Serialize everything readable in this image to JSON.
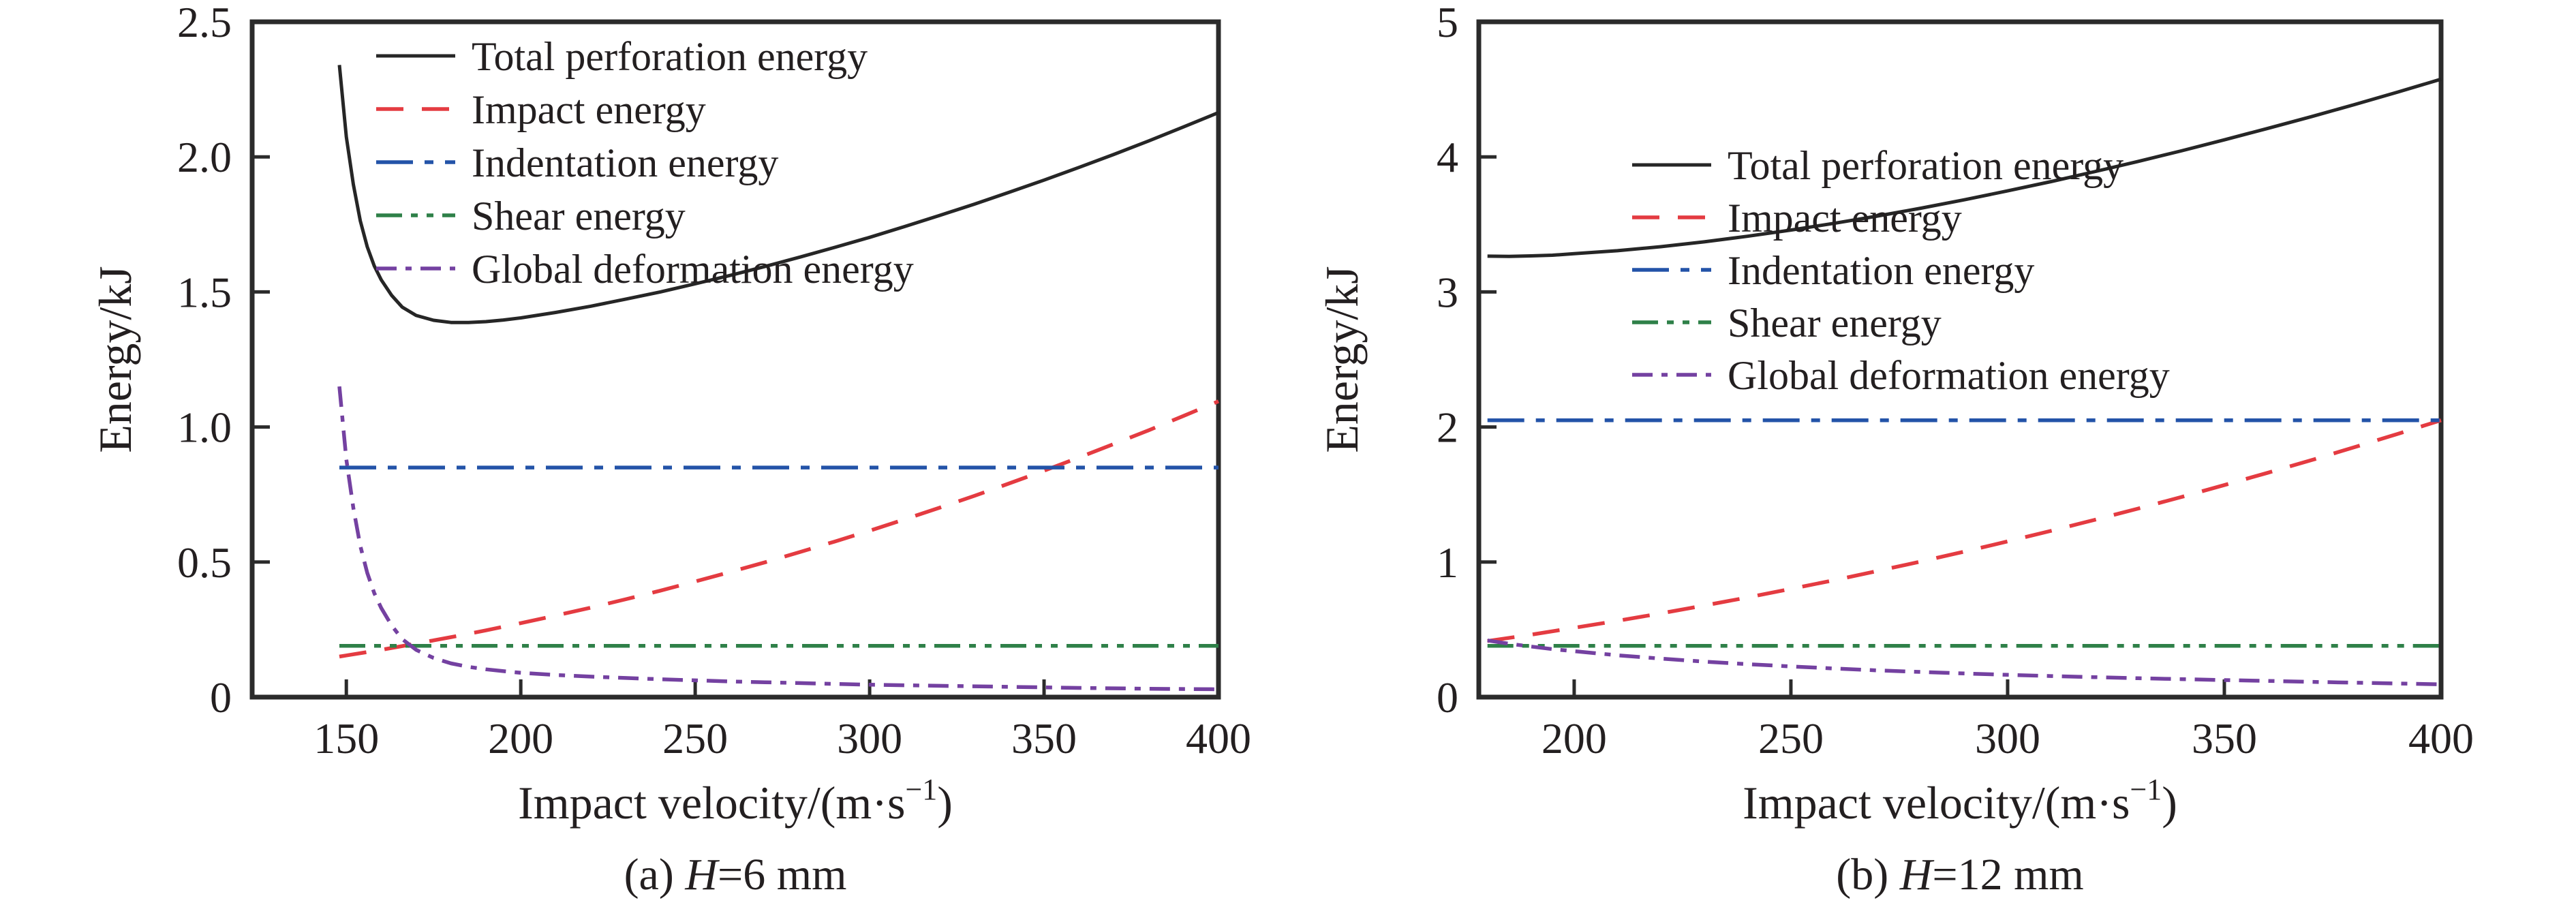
{
  "figure": {
    "background": "#ffffff",
    "frame_color": "#2b2b2b",
    "text_color": "#231f20"
  },
  "chart_data": [
    {
      "id": "panel-a",
      "type": "line",
      "caption": {
        "prefix": "(a) ",
        "variable": "H",
        "suffix": "=6 mm"
      },
      "xlabel": {
        "main": "Impact velocity/(m·s",
        "sup": "−1",
        "end": ")"
      },
      "ylabel": "Energy/kJ",
      "xlim": [
        123,
        400
      ],
      "ylim": [
        0,
        2.5
      ],
      "grid": false,
      "legend_position": "upper-left",
      "xticks": [
        {
          "v": 150,
          "label": "150"
        },
        {
          "v": 200,
          "label": "200"
        },
        {
          "v": 250,
          "label": "250"
        },
        {
          "v": 300,
          "label": "300"
        },
        {
          "v": 350,
          "label": "350"
        },
        {
          "v": 400,
          "label": "400"
        }
      ],
      "yticks": [
        {
          "v": 0,
          "label": "0"
        },
        {
          "v": 0.5,
          "label": "0.5"
        },
        {
          "v": 1.0,
          "label": "1.0"
        },
        {
          "v": 1.5,
          "label": "1.5"
        },
        {
          "v": 2.0,
          "label": "2.0"
        },
        {
          "v": 2.5,
          "label": "2.5"
        }
      ],
      "series": [
        {
          "key": "total",
          "label": "Total perforation energy",
          "color": "#262626",
          "dash": null,
          "width": 5,
          "x": [
            148,
            150,
            152,
            154,
            156,
            158,
            160,
            163,
            166,
            170,
            175,
            180,
            185,
            190,
            195,
            200,
            210,
            220,
            230,
            240,
            250,
            260,
            270,
            280,
            290,
            300,
            310,
            320,
            330,
            340,
            350,
            360,
            370,
            380,
            390,
            400
          ],
          "y": [
            2.34,
            2.074,
            1.898,
            1.763,
            1.667,
            1.596,
            1.545,
            1.487,
            1.444,
            1.413,
            1.395,
            1.387,
            1.387,
            1.39,
            1.396,
            1.404,
            1.424,
            1.447,
            1.473,
            1.5,
            1.53,
            1.561,
            1.594,
            1.629,
            1.665,
            1.702,
            1.742,
            1.783,
            1.825,
            1.869,
            1.914,
            1.961,
            2.009,
            2.059,
            2.111,
            2.164
          ]
        },
        {
          "key": "impact",
          "label": "Impact energy",
          "color": "#e43b41",
          "dash": "40 27",
          "width": 5.5,
          "x": [
            148,
            160,
            170,
            180,
            190,
            200,
            210,
            220,
            230,
            240,
            250,
            260,
            270,
            280,
            290,
            300,
            310,
            320,
            330,
            340,
            350,
            360,
            370,
            380,
            390,
            400
          ],
          "y": [
            0.15,
            0.175,
            0.198,
            0.222,
            0.247,
            0.274,
            0.302,
            0.331,
            0.362,
            0.394,
            0.428,
            0.463,
            0.499,
            0.537,
            0.576,
            0.616,
            0.658,
            0.701,
            0.745,
            0.791,
            0.838,
            0.887,
            0.937,
            0.988,
            1.041,
            1.095
          ]
        },
        {
          "key": "indentation",
          "label": "Indentation energy",
          "color": "#2353a8",
          "dash": "54 17 13 17",
          "width": 5.5,
          "x": [
            148,
            400
          ],
          "y": [
            0.85,
            0.85
          ]
        },
        {
          "key": "shear",
          "label": "Shear energy",
          "color": "#2e8048",
          "dash": "38 13 10 13 10 13",
          "width": 5.5,
          "x": [
            148,
            400
          ],
          "y": [
            0.19,
            0.19
          ]
        },
        {
          "key": "global",
          "label": "Global deformation energy",
          "color": "#7441a1",
          "dash": "30 13 9 13",
          "width": 5.5,
          "x": [
            148,
            150,
            152,
            154,
            156,
            158,
            160,
            163,
            166,
            170,
            175,
            180,
            185,
            190,
            195,
            200,
            210,
            220,
            230,
            240,
            250,
            260,
            270,
            280,
            290,
            300,
            320,
            340,
            360,
            380,
            400
          ],
          "y": [
            1.15,
            0.88,
            0.7,
            0.56,
            0.46,
            0.385,
            0.33,
            0.265,
            0.215,
            0.175,
            0.145,
            0.125,
            0.112,
            0.103,
            0.096,
            0.09,
            0.082,
            0.076,
            0.071,
            0.066,
            0.062,
            0.058,
            0.055,
            0.052,
            0.049,
            0.046,
            0.042,
            0.038,
            0.034,
            0.031,
            0.029
          ]
        }
      ]
    },
    {
      "id": "panel-b",
      "type": "line",
      "caption": {
        "prefix": "(b) ",
        "variable": "H",
        "suffix": "=12 mm"
      },
      "xlabel": {
        "main": "Impact velocity/(m·s",
        "sup": "−1",
        "end": ")"
      },
      "ylabel": "Energy/kJ",
      "xlim": [
        178,
        400
      ],
      "ylim": [
        0,
        5
      ],
      "grid": false,
      "legend_position": "middle-right",
      "xticks": [
        {
          "v": 200,
          "label": "200"
        },
        {
          "v": 250,
          "label": "250"
        },
        {
          "v": 300,
          "label": "300"
        },
        {
          "v": 350,
          "label": "350"
        },
        {
          "v": 400,
          "label": "400"
        }
      ],
      "yticks": [
        {
          "v": 0,
          "label": "0"
        },
        {
          "v": 1,
          "label": "1"
        },
        {
          "v": 2,
          "label": "2"
        },
        {
          "v": 3,
          "label": "3"
        },
        {
          "v": 4,
          "label": "4"
        },
        {
          "v": 5,
          "label": "5"
        }
      ],
      "series": [
        {
          "key": "total",
          "label": "Total perforation energy",
          "color": "#262626",
          "dash": null,
          "width": 5,
          "x": [
            180,
            185,
            190,
            195,
            200,
            210,
            220,
            230,
            240,
            250,
            260,
            270,
            280,
            290,
            300,
            310,
            320,
            330,
            340,
            350,
            360,
            370,
            380,
            390,
            400
          ],
          "y": [
            3.265,
            3.263,
            3.267,
            3.272,
            3.283,
            3.305,
            3.335,
            3.371,
            3.412,
            3.458,
            3.508,
            3.562,
            3.62,
            3.682,
            3.748,
            3.817,
            3.89,
            3.965,
            4.044,
            4.126,
            4.211,
            4.297,
            4.387,
            4.48,
            4.575
          ]
        },
        {
          "key": "impact",
          "label": "Impact energy",
          "color": "#e43b41",
          "dash": "40 27",
          "width": 5.5,
          "x": [
            180,
            190,
            200,
            210,
            220,
            230,
            240,
            250,
            260,
            270,
            280,
            290,
            300,
            310,
            320,
            330,
            340,
            350,
            360,
            370,
            380,
            390,
            400
          ],
          "y": [
            0.415,
            0.462,
            0.513,
            0.565,
            0.62,
            0.678,
            0.738,
            0.801,
            0.866,
            0.934,
            1.004,
            1.077,
            1.153,
            1.231,
            1.312,
            1.395,
            1.481,
            1.57,
            1.661,
            1.754,
            1.85,
            1.949,
            2.05
          ]
        },
        {
          "key": "indentation",
          "label": "Indentation energy",
          "color": "#2353a8",
          "dash": "54 17 13 17",
          "width": 5.5,
          "x": [
            180,
            400
          ],
          "y": [
            2.05,
            2.05
          ]
        },
        {
          "key": "shear",
          "label": "Shear energy",
          "color": "#2e8048",
          "dash": "38 13 10 13 10 13",
          "width": 5.5,
          "x": [
            180,
            400
          ],
          "y": [
            0.38,
            0.38
          ]
        },
        {
          "key": "global",
          "label": "Global deformation energy",
          "color": "#7441a1",
          "dash": "30 13 9 13",
          "width": 5.5,
          "x": [
            180,
            185,
            190,
            195,
            200,
            210,
            220,
            230,
            240,
            250,
            260,
            270,
            280,
            290,
            300,
            310,
            320,
            330,
            340,
            350,
            360,
            370,
            380,
            390,
            400
          ],
          "y": [
            0.42,
            0.395,
            0.375,
            0.355,
            0.34,
            0.31,
            0.285,
            0.263,
            0.244,
            0.227,
            0.212,
            0.198,
            0.186,
            0.175,
            0.165,
            0.156,
            0.148,
            0.14,
            0.133,
            0.126,
            0.12,
            0.113,
            0.107,
            0.101,
            0.095
          ]
        }
      ]
    }
  ]
}
